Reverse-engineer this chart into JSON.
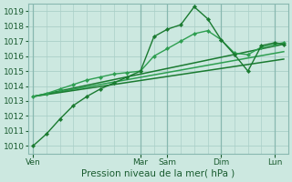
{
  "title": "",
  "xlabel": "Pression niveau de la mer( hPa )",
  "ylabel": "",
  "ylim": [
    1009.5,
    1019.5
  ],
  "yticks": [
    1010,
    1011,
    1012,
    1013,
    1014,
    1015,
    1016,
    1017,
    1018,
    1019
  ],
  "xtick_labels": [
    "Ven",
    "Mar",
    "Sam",
    "Dim",
    "Lun"
  ],
  "xtick_positions": [
    0,
    48,
    60,
    84,
    108
  ],
  "xlim": [
    -2,
    114
  ],
  "x_minor_step": 6,
  "x_major_step": 24,
  "background_color": "#cce8e0",
  "grid_color": "#aacfc8",
  "vline_color": "#88b8b0",
  "tick_label_color": "#1a5c30",
  "tick_fontsize": 6.5,
  "xlabel_fontsize": 7.5,
  "series": [
    {
      "x": [
        0,
        6,
        12,
        18,
        24,
        30,
        36,
        42,
        48,
        54,
        60,
        66,
        72,
        78,
        84,
        90,
        96,
        102,
        108,
        112
      ],
      "y": [
        1010.0,
        1010.8,
        1011.8,
        1012.7,
        1013.3,
        1013.8,
        1014.2,
        1014.6,
        1015.0,
        1017.3,
        1017.8,
        1018.1,
        1019.3,
        1018.5,
        1017.1,
        1016.1,
        1015.0,
        1016.7,
        1016.9,
        1016.8
      ],
      "color": "#1a7a30",
      "lw": 1.0,
      "marker": "D",
      "ms": 2.2,
      "zorder": 4
    },
    {
      "x": [
        0,
        6,
        12,
        18,
        24,
        30,
        36,
        42,
        48,
        54,
        60,
        66,
        72,
        78,
        84,
        90,
        96,
        102,
        108,
        112
      ],
      "y": [
        1013.3,
        1013.5,
        1013.8,
        1014.1,
        1014.4,
        1014.6,
        1014.8,
        1014.9,
        1015.0,
        1016.0,
        1016.5,
        1017.0,
        1017.5,
        1017.7,
        1017.1,
        1016.2,
        1016.1,
        1016.6,
        1016.8,
        1016.9
      ],
      "color": "#2d9e50",
      "lw": 1.0,
      "marker": "D",
      "ms": 2.2,
      "zorder": 3
    },
    {
      "x": [
        0,
        112
      ],
      "y": [
        1013.3,
        1016.8
      ],
      "color": "#1a7a30",
      "lw": 1.1,
      "marker": null,
      "ms": 0,
      "zorder": 2
    },
    {
      "x": [
        0,
        112
      ],
      "y": [
        1013.3,
        1016.3
      ],
      "color": "#2d9e50",
      "lw": 1.1,
      "marker": null,
      "ms": 0,
      "zorder": 2
    },
    {
      "x": [
        0,
        112
      ],
      "y": [
        1013.3,
        1015.8
      ],
      "color": "#1a7a30",
      "lw": 1.1,
      "marker": null,
      "ms": 0,
      "zorder": 2
    }
  ],
  "vline_positions": [
    0,
    48,
    60,
    84,
    108
  ],
  "vline_color_strong": "#88b8b0"
}
